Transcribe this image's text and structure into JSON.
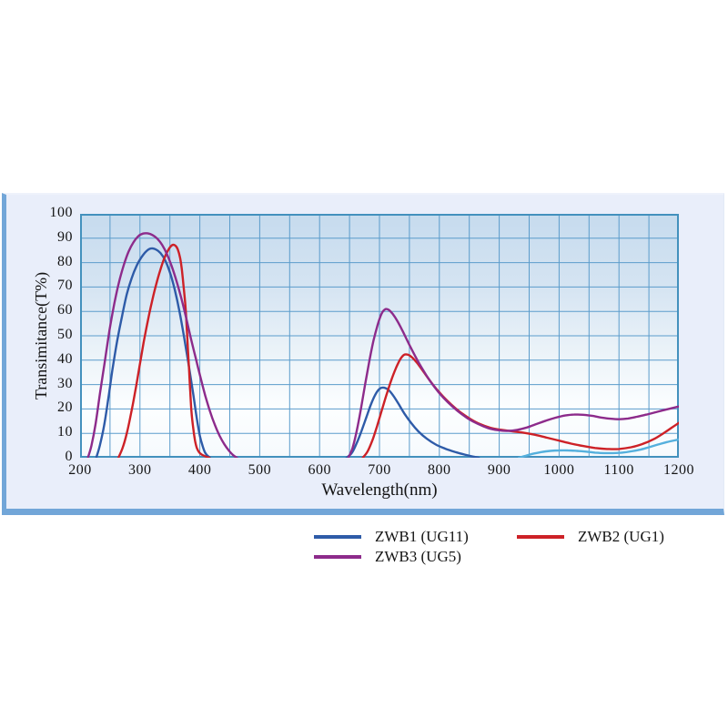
{
  "panel": {
    "background": "#e9eefa",
    "border_color": "#72a6d8"
  },
  "chart_data": {
    "type": "line",
    "title": "",
    "xlabel": "Wavelength(nm)",
    "ylabel": "Transimitance(T%)",
    "xlim": [
      200,
      1200
    ],
    "ylim": [
      0,
      100
    ],
    "x_ticks": [
      200,
      300,
      400,
      500,
      600,
      700,
      800,
      900,
      1000,
      1100,
      1200
    ],
    "y_ticks": [
      0,
      10,
      20,
      30,
      40,
      50,
      60,
      70,
      80,
      90,
      100
    ],
    "grid": {
      "x_step": 50,
      "y_step": 10,
      "color": "#5b9ccb",
      "border_color": "#4391bd",
      "on": true
    },
    "legend_position": "below-chart",
    "legend": [
      {
        "label": "ZWB1 (UG11)",
        "color": "#2e5ba8"
      },
      {
        "label": "ZWB2 (UG1)",
        "color": "#cd2127"
      },
      {
        "label": "ZWB3 (UG5)",
        "color": "#8d2b8b"
      }
    ],
    "series": [
      {
        "key": "zwb1",
        "name": "ZWB1 (UG11)",
        "color": "#2e5ba8",
        "segments": [
          [
            [
              227,
              0
            ],
            [
              233,
              5
            ],
            [
              240,
              13
            ],
            [
              247,
              24
            ],
            [
              254,
              36
            ],
            [
              262,
              48
            ],
            [
              270,
              58
            ],
            [
              278,
              67
            ],
            [
              286,
              73.5
            ],
            [
              294,
              78.5
            ],
            [
              302,
              82
            ],
            [
              310,
              84.5
            ],
            [
              318,
              85.8
            ],
            [
              326,
              85.5
            ],
            [
              334,
              84
            ],
            [
              342,
              81
            ],
            [
              350,
              76
            ],
            [
              358,
              69
            ],
            [
              366,
              60
            ],
            [
              374,
              49
            ],
            [
              382,
              37
            ],
            [
              389,
              26
            ],
            [
              395,
              16
            ],
            [
              400,
              9
            ],
            [
              405,
              4.5
            ],
            [
              409,
              2
            ],
            [
              413,
              0.8
            ],
            [
              417,
              0
            ]
          ],
          [
            [
              645,
              0
            ],
            [
              654,
              2
            ],
            [
              662,
              6
            ],
            [
              670,
              11
            ],
            [
              678,
              16.5
            ],
            [
              686,
              22
            ],
            [
              694,
              26.3
            ],
            [
              701,
              28.4
            ],
            [
              708,
              28.7
            ],
            [
              715,
              27.8
            ],
            [
              723,
              25.5
            ],
            [
              732,
              22
            ],
            [
              742,
              18
            ],
            [
              753,
              14.2
            ],
            [
              765,
              10.8
            ],
            [
              779,
              7.8
            ],
            [
              794,
              5.4
            ],
            [
              810,
              3.7
            ],
            [
              826,
              2.4
            ],
            [
              842,
              1.3
            ],
            [
              856,
              0.5
            ],
            [
              866,
              0
            ]
          ]
        ]
      },
      {
        "key": "zwb2",
        "name": "ZWB2 (UG1)",
        "color": "#cd2127",
        "segments": [
          [
            [
              264,
              0
            ],
            [
              271,
              4
            ],
            [
              278,
              10
            ],
            [
              285,
              18
            ],
            [
              292,
              27
            ],
            [
              299,
              37
            ],
            [
              306,
              47
            ],
            [
              313,
              56
            ],
            [
              320,
              64
            ],
            [
              327,
              71
            ],
            [
              334,
              77
            ],
            [
              341,
              82
            ],
            [
              348,
              85.5
            ],
            [
              354,
              87.2
            ],
            [
              359,
              87
            ],
            [
              363,
              85.5
            ],
            [
              367,
              82
            ],
            [
              370,
              77
            ],
            [
              373,
              70
            ],
            [
              376,
              62
            ],
            [
              378,
              54
            ],
            [
              380,
              45
            ],
            [
              382,
              36
            ],
            [
              384,
              27
            ],
            [
              386,
              19
            ],
            [
              389,
              12
            ],
            [
              392,
              7
            ],
            [
              395,
              4
            ],
            [
              399,
              2.2
            ],
            [
              404,
              1.2
            ],
            [
              410,
              0.5
            ],
            [
              416,
              0
            ]
          ],
          [
            [
              672,
              0
            ],
            [
              680,
              2.5
            ],
            [
              688,
              7
            ],
            [
              696,
              13
            ],
            [
              704,
              19.5
            ],
            [
              712,
              26
            ],
            [
              720,
              32
            ],
            [
              728,
              37
            ],
            [
              735,
              40.5
            ],
            [
              741,
              42.2
            ],
            [
              748,
              42.2
            ],
            [
              755,
              41
            ],
            [
              763,
              38.8
            ],
            [
              772,
              35.8
            ],
            [
              782,
              32.3
            ],
            [
              793,
              28.8
            ],
            [
              806,
              25.2
            ],
            [
              820,
              21.8
            ],
            [
              835,
              18.7
            ],
            [
              851,
              16
            ],
            [
              868,
              13.8
            ],
            [
              885,
              12.3
            ],
            [
              902,
              11.5
            ],
            [
              920,
              10.9
            ],
            [
              940,
              10.3
            ],
            [
              960,
              9.4
            ],
            [
              980,
              8.2
            ],
            [
              1000,
              7
            ],
            [
              1020,
              5.8
            ],
            [
              1040,
              4.8
            ],
            [
              1060,
              4
            ],
            [
              1080,
              3.6
            ],
            [
              1100,
              3.6
            ],
            [
              1120,
              4.3
            ],
            [
              1140,
              5.7
            ],
            [
              1158,
              7.6
            ],
            [
              1174,
              10
            ],
            [
              1188,
              12.3
            ],
            [
              1200,
              14.3
            ]
          ]
        ]
      },
      {
        "key": "zwb3",
        "name": "ZWB3 (UG5)",
        "color": "#8d2b8b",
        "segments": [
          [
            [
              213,
              0
            ],
            [
              219,
              5
            ],
            [
              226,
              14
            ],
            [
              233,
              26
            ],
            [
              241,
              39
            ],
            [
              249,
              52
            ],
            [
              257,
              63
            ],
            [
              265,
              72
            ],
            [
              273,
              79
            ],
            [
              281,
              84.5
            ],
            [
              289,
              88.3
            ],
            [
              297,
              90.8
            ],
            [
              305,
              91.9
            ],
            [
              313,
              92
            ],
            [
              321,
              91.3
            ],
            [
              329,
              89.8
            ],
            [
              337,
              87.3
            ],
            [
              345,
              83.5
            ],
            [
              353,
              78.5
            ],
            [
              361,
              72.5
            ],
            [
              369,
              65.5
            ],
            [
              377,
              57.5
            ],
            [
              385,
              49
            ],
            [
              393,
              41
            ],
            [
              401,
              33
            ],
            [
              409,
              25.5
            ],
            [
              417,
              19
            ],
            [
              425,
              13.5
            ],
            [
              433,
              9
            ],
            [
              441,
              5.5
            ],
            [
              449,
              2.8
            ],
            [
              456,
              1
            ],
            [
              462,
              0
            ]
          ],
          [
            [
              648,
              0
            ],
            [
              655,
              4
            ],
            [
              662,
              11
            ],
            [
              669,
              20
            ],
            [
              676,
              30
            ],
            [
              683,
              39.5
            ],
            [
              690,
              48
            ],
            [
              697,
              54.5
            ],
            [
              703,
              58.8
            ],
            [
              709,
              60.8
            ],
            [
              715,
              60.7
            ],
            [
              722,
              59
            ],
            [
              730,
              56
            ],
            [
              739,
              51.8
            ],
            [
              749,
              46.8
            ],
            [
              760,
              41.5
            ],
            [
              772,
              36.3
            ],
            [
              785,
              31.3
            ],
            [
              799,
              26.8
            ],
            [
              814,
              22.8
            ],
            [
              830,
              19.3
            ],
            [
              847,
              16.2
            ],
            [
              864,
              13.9
            ],
            [
              881,
              12.2
            ],
            [
              898,
              11.3
            ],
            [
              914,
              11
            ],
            [
              930,
              11.4
            ],
            [
              946,
              12.4
            ],
            [
              962,
              13.8
            ],
            [
              978,
              15.2
            ],
            [
              994,
              16.4
            ],
            [
              1010,
              17.3
            ],
            [
              1025,
              17.7
            ],
            [
              1040,
              17.6
            ],
            [
              1055,
              17.2
            ],
            [
              1070,
              16.5
            ],
            [
              1085,
              16
            ],
            [
              1100,
              15.8
            ],
            [
              1115,
              16.1
            ],
            [
              1130,
              16.8
            ],
            [
              1146,
              17.7
            ],
            [
              1162,
              18.7
            ],
            [
              1178,
              19.7
            ],
            [
              1200,
              21
            ]
          ]
        ]
      },
      {
        "key": "zwb1_tail",
        "name": "ZWB1 near-IR tail (light blue)",
        "color": "#55b0dd",
        "in_legend": false,
        "segments": [
          [
            [
              933,
              0
            ],
            [
              944,
              0.8
            ],
            [
              956,
              1.6
            ],
            [
              970,
              2.3
            ],
            [
              985,
              2.8
            ],
            [
              1000,
              3
            ],
            [
              1015,
              3
            ],
            [
              1030,
              2.8
            ],
            [
              1045,
              2.5
            ],
            [
              1060,
              2.1
            ],
            [
              1075,
              1.9
            ],
            [
              1090,
              1.9
            ],
            [
              1105,
              2.1
            ],
            [
              1120,
              2.6
            ],
            [
              1135,
              3.3
            ],
            [
              1150,
              4.3
            ],
            [
              1165,
              5.4
            ],
            [
              1180,
              6.4
            ],
            [
              1200,
              7.5
            ]
          ]
        ]
      }
    ]
  }
}
